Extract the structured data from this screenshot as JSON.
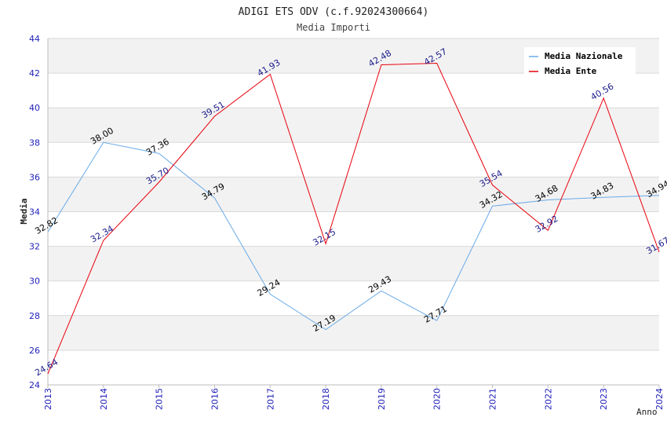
{
  "chart_data": {
    "type": "line",
    "title": "ADIGI ETS ODV (c.f.92024300664)",
    "subtitle": "Media Importi",
    "xlabel": "Anno",
    "ylabel": "Media",
    "ylim": [
      24,
      44
    ],
    "yticks": [
      24,
      26,
      28,
      30,
      32,
      34,
      36,
      38,
      40,
      42,
      44
    ],
    "categories": [
      "2013",
      "2014",
      "2015",
      "2016",
      "2017",
      "2018",
      "2019",
      "2020",
      "2021",
      "2022",
      "2023",
      "2024"
    ],
    "grid": true,
    "legend_position": "top-right",
    "series": [
      {
        "name": "Media Nazionale",
        "color": "#6aaae8",
        "label_color": "#000000",
        "values": [
          32.82,
          38.0,
          37.36,
          34.79,
          29.24,
          27.19,
          29.43,
          27.71,
          34.32,
          34.68,
          34.83,
          34.94
        ],
        "labels": [
          "32.82",
          "38.00",
          "37.36",
          "34.79",
          "29.24",
          "27.19",
          "29.43",
          "27.71",
          "34.32",
          "34.68",
          "34.83",
          "34.94"
        ]
      },
      {
        "name": "Media Ente",
        "color": "#e8000b",
        "label_color": "#1a1a8c",
        "values": [
          24.64,
          32.34,
          35.7,
          39.51,
          41.93,
          32.15,
          42.48,
          42.57,
          35.54,
          32.92,
          40.56,
          31.67
        ],
        "labels": [
          "24.64",
          "32.34",
          "35.70",
          "39.51",
          "41.93",
          "32.15",
          "42.48",
          "42.57",
          "35.54",
          "32.92",
          "40.56",
          "31.67"
        ]
      }
    ],
    "colors": {
      "band": "#f2f2f2",
      "grid": "#d9d9d9",
      "axis": "#bbbbbb",
      "tick_label": "#2222bb",
      "text": "#222222"
    }
  }
}
